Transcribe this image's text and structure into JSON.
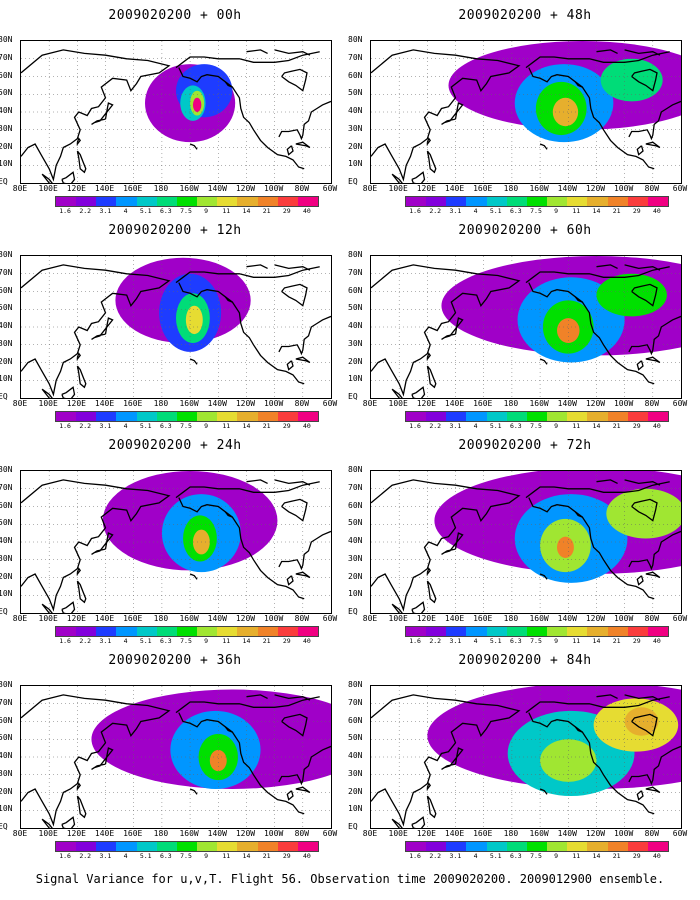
{
  "figure": {
    "caption": "Signal Variance for u,v,T. Flight 56. Observation time 2009020200. 2009012900 ensemble."
  },
  "axes": {
    "x_ticks": [
      "80E",
      "100E",
      "120E",
      "140E",
      "160E",
      "180",
      "160W",
      "140W",
      "120W",
      "100W",
      "80W",
      "60W"
    ],
    "y_ticks": [
      "80N",
      "70N",
      "60N",
      "50N",
      "40N",
      "30N",
      "20N",
      "10N",
      "EQ"
    ]
  },
  "colorbar": {
    "labels": [
      "1.6",
      "2.2",
      "3.1",
      "4",
      "5.1",
      "6.3",
      "7.5",
      "9",
      "11",
      "14",
      "21",
      "29",
      "40"
    ],
    "colors": [
      "#a000c8",
      "#8200dc",
      "#1e3cff",
      "#0096ff",
      "#00c8c8",
      "#00dc78",
      "#00e000",
      "#a0e632",
      "#e6dc32",
      "#e6af2d",
      "#f08228",
      "#fa3c3c",
      "#f00082"
    ]
  },
  "panels": [
    {
      "date": "2009020200",
      "lead": "00h",
      "blobs": [
        {
          "lon": -160,
          "lat": 45,
          "rx": 32,
          "ry": 22,
          "level": 0
        },
        {
          "lon": -150,
          "lat": 52,
          "rx": 20,
          "ry": 15,
          "level": 2
        },
        {
          "lon": -158,
          "lat": 45,
          "rx": 9,
          "ry": 10,
          "level": 4
        },
        {
          "lon": -155,
          "lat": 45,
          "rx": 5,
          "ry": 7,
          "level": 7
        },
        {
          "lon": -155,
          "lat": 44,
          "rx": 3,
          "ry": 4,
          "level": 12
        }
      ]
    },
    {
      "date": "2009020200",
      "lead": "48h",
      "blobs": [
        {
          "lon": -130,
          "lat": 55,
          "rx": 95,
          "ry": 25,
          "level": 0
        },
        {
          "lon": -143,
          "lat": 45,
          "rx": 35,
          "ry": 22,
          "level": 3
        },
        {
          "lon": -145,
          "lat": 42,
          "rx": 18,
          "ry": 15,
          "level": 6
        },
        {
          "lon": -142,
          "lat": 40,
          "rx": 9,
          "ry": 8,
          "level": 9
        },
        {
          "lon": -95,
          "lat": 58,
          "rx": 22,
          "ry": 12,
          "level": 5
        }
      ]
    },
    {
      "date": "2009020200",
      "lead": "12h",
      "blobs": [
        {
          "lon": -165,
          "lat": 55,
          "rx": 48,
          "ry": 24,
          "level": 0
        },
        {
          "lon": -160,
          "lat": 48,
          "rx": 22,
          "ry": 22,
          "level": 2
        },
        {
          "lon": -158,
          "lat": 45,
          "rx": 12,
          "ry": 14,
          "level": 5
        },
        {
          "lon": -157,
          "lat": 44,
          "rx": 6,
          "ry": 8,
          "level": 8
        }
      ]
    },
    {
      "date": "2009020200",
      "lead": "60h",
      "blobs": [
        {
          "lon": -120,
          "lat": 52,
          "rx": 110,
          "ry": 28,
          "level": 0
        },
        {
          "lon": -138,
          "lat": 44,
          "rx": 38,
          "ry": 24,
          "level": 3
        },
        {
          "lon": -140,
          "lat": 40,
          "rx": 18,
          "ry": 15,
          "level": 6
        },
        {
          "lon": -140,
          "lat": 38,
          "rx": 8,
          "ry": 7,
          "level": 10
        },
        {
          "lon": -95,
          "lat": 58,
          "rx": 25,
          "ry": 12,
          "level": 6
        }
      ]
    },
    {
      "date": "2009020200",
      "lead": "24h",
      "blobs": [
        {
          "lon": -160,
          "lat": 52,
          "rx": 62,
          "ry": 28,
          "level": 0
        },
        {
          "lon": -152,
          "lat": 45,
          "rx": 28,
          "ry": 22,
          "level": 3
        },
        {
          "lon": -153,
          "lat": 42,
          "rx": 12,
          "ry": 13,
          "level": 6
        },
        {
          "lon": -152,
          "lat": 40,
          "rx": 6,
          "ry": 7,
          "level": 9
        }
      ]
    },
    {
      "date": "2009020200",
      "lead": "72h",
      "blobs": [
        {
          "lon": -120,
          "lat": 52,
          "rx": 115,
          "ry": 30,
          "level": 0
        },
        {
          "lon": -138,
          "lat": 42,
          "rx": 40,
          "ry": 25,
          "level": 3
        },
        {
          "lon": -142,
          "lat": 38,
          "rx": 18,
          "ry": 15,
          "level": 7
        },
        {
          "lon": -142,
          "lat": 37,
          "rx": 6,
          "ry": 6,
          "level": 10
        },
        {
          "lon": -85,
          "lat": 56,
          "rx": 28,
          "ry": 14,
          "level": 7
        }
      ]
    },
    {
      "date": "2009020200",
      "lead": "36h",
      "blobs": [
        {
          "lon": -130,
          "lat": 50,
          "rx": 100,
          "ry": 28,
          "level": 0
        },
        {
          "lon": -142,
          "lat": 44,
          "rx": 32,
          "ry": 22,
          "level": 3
        },
        {
          "lon": -140,
          "lat": 40,
          "rx": 14,
          "ry": 13,
          "level": 6
        },
        {
          "lon": -140,
          "lat": 38,
          "rx": 6,
          "ry": 6,
          "level": 10
        }
      ]
    },
    {
      "date": "2009020200",
      "lead": "84h",
      "blobs": [
        {
          "lon": -120,
          "lat": 52,
          "rx": 120,
          "ry": 30,
          "level": 0
        },
        {
          "lon": -138,
          "lat": 42,
          "rx": 45,
          "ry": 24,
          "level": 4
        },
        {
          "lon": -140,
          "lat": 38,
          "rx": 20,
          "ry": 12,
          "level": 7
        },
        {
          "lon": -92,
          "lat": 58,
          "rx": 30,
          "ry": 15,
          "level": 8
        },
        {
          "lon": -88,
          "lat": 60,
          "rx": 12,
          "ry": 8,
          "level": 9
        }
      ]
    }
  ]
}
